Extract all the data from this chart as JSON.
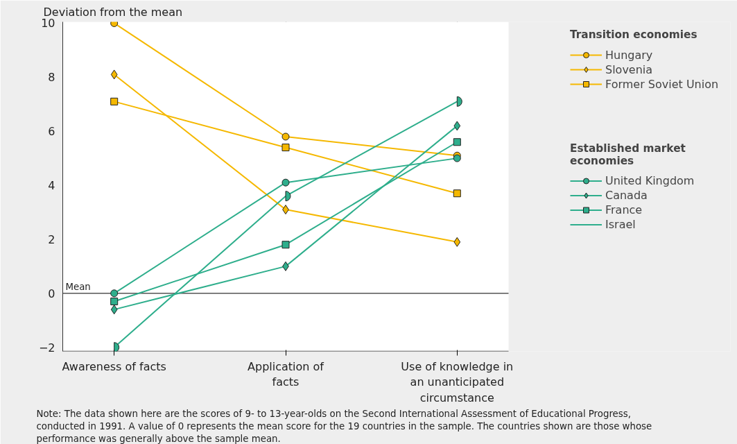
{
  "chart_data": {
    "type": "line",
    "ylabel": "Deviation from the mean",
    "categories": [
      "Awareness of facts",
      "Application of facts",
      "Use of knowledge in an unanticipated circumstance"
    ],
    "ylim": [
      -2.15,
      10.05
    ],
    "yticks": [
      {
        "value": -2,
        "label": "−2"
      },
      0,
      2,
      4,
      6,
      8,
      10
    ],
    "grid": "x",
    "legend": "right",
    "legend_title": [
      "Transition economies",
      "Established market economies"
    ],
    "series": [
      {
        "name": "Hungary",
        "color": "#f5b800",
        "marker": "circle",
        "values": [
          10,
          5.8,
          5.1
        ]
      },
      {
        "name": "Slovenia",
        "color": "#f5b800",
        "marker": "diamond",
        "values": [
          8.1,
          3.1,
          1.9
        ]
      },
      {
        "name": "Former Soviet Union",
        "color": "#f5b800",
        "marker": "square",
        "values": [
          7.1,
          5.4,
          3.7
        ]
      },
      {
        "name": "United Kingdom",
        "color": "#2eae8c",
        "marker": "circle",
        "values": [
          0.0,
          4.1,
          5.0
        ]
      },
      {
        "name": "Canada",
        "color": "#2eae8c",
        "marker": "diamond",
        "values": [
          -0.6,
          1.0,
          6.2
        ]
      },
      {
        "name": "France",
        "color": "#2eae8c",
        "marker": "square",
        "values": [
          -0.3,
          1.8,
          5.6
        ]
      },
      {
        "name": "Israel",
        "color": "#2eae8c",
        "marker": "half_circle",
        "values": [
          -2.0,
          3.6,
          7.1
        ]
      }
    ],
    "ref_lines": [
      {
        "axis": "y",
        "value": 0,
        "label": "Mean",
        "color": "#555555"
      }
    ],
    "annotations": [
      "Note: The data shown here are the scores of 9- to 13-year-olds on the Second International Assessment of Educational Progress, conducted in 1991. A value of 0 represents the mean score for the 19 countries in the sample. The countries shown are those whose performance was generally above the sample mean."
    ]
  }
}
